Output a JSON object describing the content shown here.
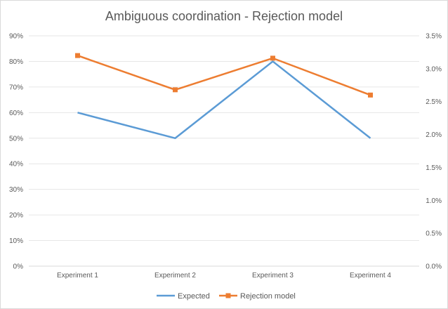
{
  "chart_data": {
    "type": "line",
    "title": "Ambiguous coordination - Rejection model",
    "categories": [
      "Experiment 1",
      "Experiment 2",
      "Experiment 3",
      "Experiment 4"
    ],
    "left_axis": {
      "ylim": [
        0,
        0.9
      ],
      "ticks": [
        0,
        0.1,
        0.2,
        0.3,
        0.4,
        0.5,
        0.6,
        0.7,
        0.8,
        0.9
      ],
      "tick_labels": [
        "0%",
        "10%",
        "20%",
        "30%",
        "40%",
        "50%",
        "60%",
        "70%",
        "80%",
        "90%"
      ]
    },
    "right_axis": {
      "ylim": [
        0,
        0.035
      ],
      "ticks": [
        0,
        0.005,
        0.01,
        0.015,
        0.02,
        0.025,
        0.03,
        0.035
      ],
      "tick_labels": [
        "0.0%",
        "0.5%",
        "1.0%",
        "1.5%",
        "2.0%",
        "2.5%",
        "3.0%",
        "3.5%"
      ]
    },
    "series": [
      {
        "name": "Expected",
        "axis": "left",
        "values": [
          0.6,
          0.5,
          0.8,
          0.5
        ],
        "color": "#5b9bd5",
        "marker": "none"
      },
      {
        "name": "Rejection model",
        "axis": "right",
        "values": [
          0.032,
          0.0268,
          0.0316,
          0.026
        ],
        "color": "#ed7d31",
        "marker": "square"
      }
    ],
    "grid": true,
    "legend_position": "bottom"
  }
}
